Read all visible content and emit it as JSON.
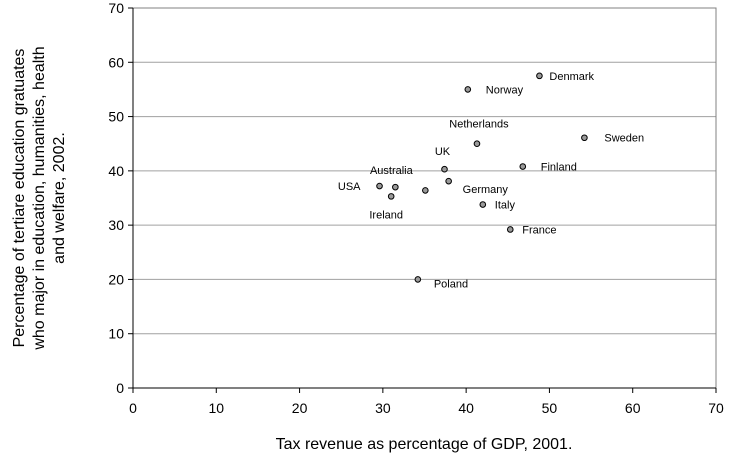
{
  "chart_data": {
    "type": "scatter",
    "title": "",
    "xlabel": "Tax revenue as percentage of GDP, 2001.",
    "ylabel_lines": [
      "Percentage of tertiare education gratuates",
      "who major in education, humanities, health",
      "and welfare, 2002."
    ],
    "xlim": [
      0,
      70
    ],
    "ylim": [
      0,
      70
    ],
    "xticks": [
      0,
      10,
      20,
      30,
      40,
      50,
      60,
      70
    ],
    "yticks": [
      0,
      10,
      20,
      30,
      40,
      50,
      60,
      70
    ],
    "grid": "horizontal",
    "points": [
      {
        "label": "Denmark",
        "x": 48.8,
        "y": 57.5
      },
      {
        "label": "Norway",
        "x": 40.2,
        "y": 55.0
      },
      {
        "label": "Sweden",
        "x": 54.2,
        "y": 46.1
      },
      {
        "label": "Netherlands",
        "x": 41.3,
        "y": 45.0
      },
      {
        "label": "Finland",
        "x": 46.8,
        "y": 40.8
      },
      {
        "label": "UK",
        "x": 37.4,
        "y": 40.3
      },
      {
        "label": "Germany",
        "x": 37.9,
        "y": 38.1
      },
      {
        "label": "Australia",
        "x": 31.5,
        "y": 37.0
      },
      {
        "label": "USA",
        "x": 29.6,
        "y": 37.2
      },
      {
        "label": "",
        "x": 35.1,
        "y": 36.4
      },
      {
        "label": "Ireland",
        "x": 31.0,
        "y": 35.3
      },
      {
        "label": "Italy",
        "x": 42.0,
        "y": 33.8
      },
      {
        "label": "France",
        "x": 45.3,
        "y": 29.2
      },
      {
        "label": "Poland",
        "x": 34.2,
        "y": 20.0
      }
    ]
  }
}
